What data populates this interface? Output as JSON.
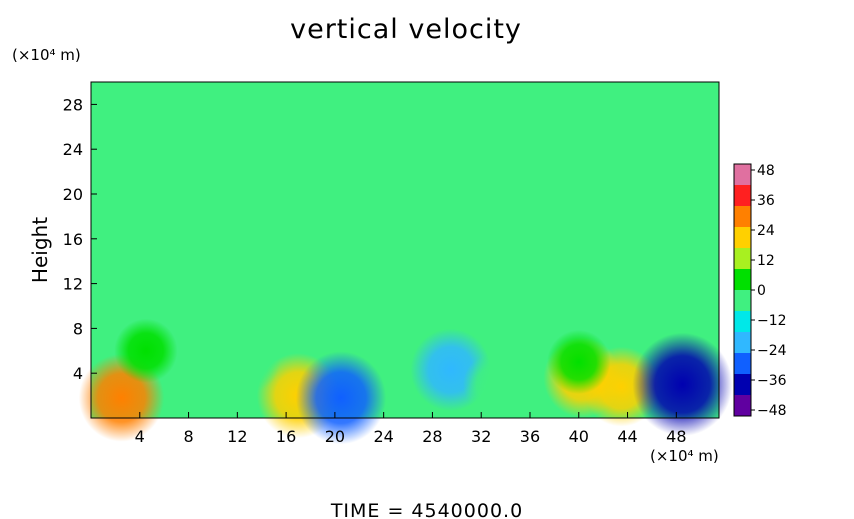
{
  "chart_data": {
    "type": "heatmap",
    "title": "vertical velocity",
    "xlabel": "",
    "ylabel": "Height",
    "x_unit": "(×10⁴ m)",
    "y_unit": "(×10⁴ m)",
    "xlim": [
      0,
      51.5
    ],
    "ylim": [
      0,
      30
    ],
    "x_ticks": [
      4,
      8,
      12,
      16,
      20,
      24,
      28,
      32,
      36,
      40,
      44,
      48
    ],
    "y_ticks": [
      4,
      8,
      12,
      16,
      20,
      24,
      28
    ],
    "grid": false,
    "colorbar": {
      "ticks": [
        48,
        36,
        24,
        12,
        0,
        -12,
        -24,
        -36,
        -48
      ],
      "min": -48,
      "max": 48,
      "colors": [
        "#e070a0",
        "#ff2020",
        "#ff8000",
        "#ffd000",
        "#a8f020",
        "#00e000",
        "#40f080",
        "#00e8e8",
        "#30b8ff",
        "#1060ff",
        "#0000b0",
        "#6000a0"
      ]
    },
    "background_value": 0,
    "features": [
      {
        "x": 2.5,
        "y": 1.8,
        "value": 26
      },
      {
        "x": 17.0,
        "y": 2.0,
        "value": 24
      },
      {
        "x": 20.5,
        "y": 1.8,
        "value": -30
      },
      {
        "x": 29.5,
        "y": 4.3,
        "value": -22
      },
      {
        "x": 40.3,
        "y": 3.6,
        "value": 20
      },
      {
        "x": 43.5,
        "y": 2.8,
        "value": 20
      },
      {
        "x": 48.5,
        "y": 3.0,
        "value": -38
      },
      {
        "x": 4.5,
        "y": 6.0,
        "value": 8
      },
      {
        "x": 40.0,
        "y": 5.0,
        "value": 8
      },
      {
        "x": 13.0,
        "y": 5.0,
        "value": -6
      },
      {
        "x": 33.0,
        "y": 3.0,
        "value": -6
      }
    ],
    "annotation": "TIME  =  4540000.0"
  }
}
